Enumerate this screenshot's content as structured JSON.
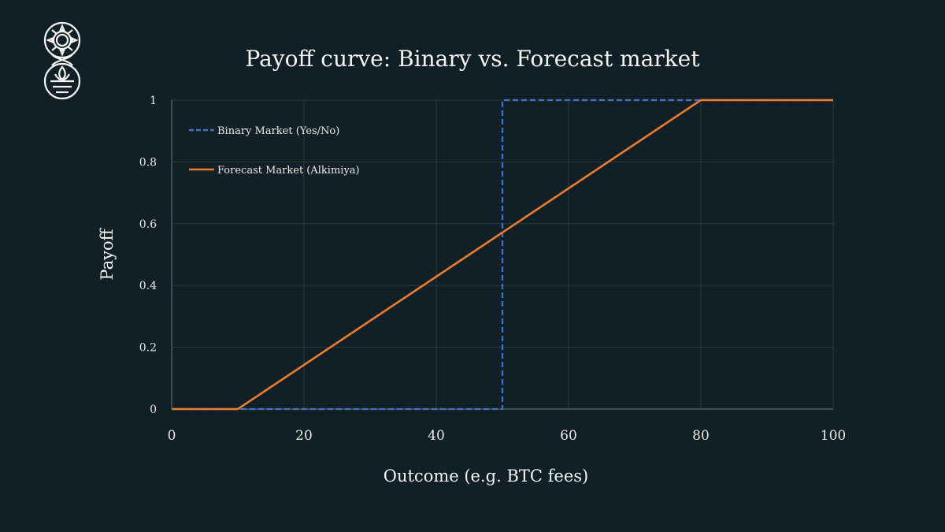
{
  "logo": {
    "icon": "ouroboros-lotus-logo-icon"
  },
  "colors": {
    "background": "#111f26",
    "binary": "#4472c4",
    "forecast": "#ed7d31",
    "grid": "#2b3a42"
  },
  "chart_data": {
    "type": "line",
    "title": "Payoff curve: Binary vs. Forecast market",
    "xlabel": "Outcome (e.g. BTC fees)",
    "ylabel": "Payoff",
    "xlim": [
      0,
      100
    ],
    "ylim": [
      0,
      1
    ],
    "xticks": [
      "0",
      "20",
      "40",
      "60",
      "80",
      "100"
    ],
    "yticks": [
      "0",
      "0.2",
      "0.4",
      "0.6",
      "0.8",
      "1"
    ],
    "grid": true,
    "legend_position": "top-left",
    "series": [
      {
        "name": "Binary Market (Yes/No)",
        "style": "dashed",
        "color": "#4472c4",
        "x": [
          0,
          50,
          50,
          100
        ],
        "y": [
          0,
          0,
          1,
          1
        ]
      },
      {
        "name": "Forecast Market (Alkimiya)",
        "style": "solid",
        "color": "#ed7d31",
        "x": [
          0,
          10,
          80,
          100
        ],
        "y": [
          0,
          0,
          1,
          1
        ]
      }
    ]
  }
}
